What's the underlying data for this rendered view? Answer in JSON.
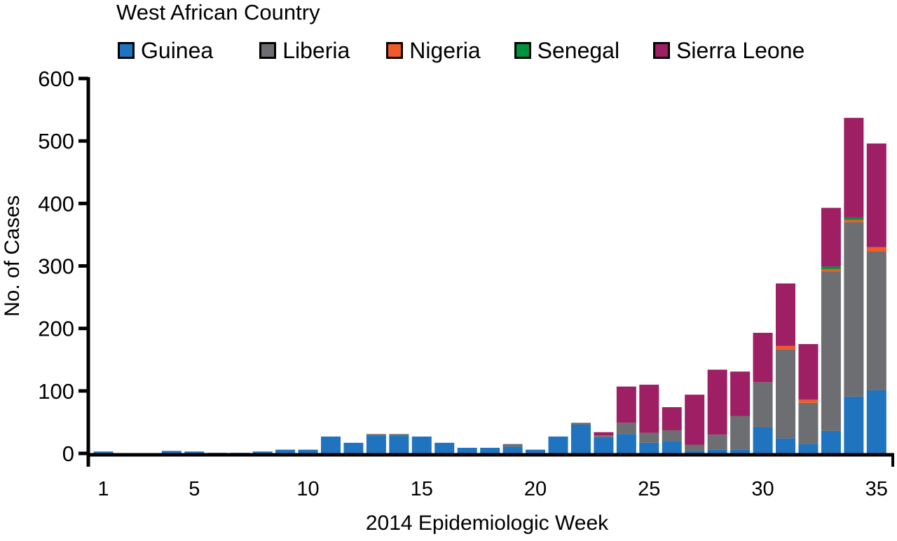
{
  "chart_data": {
    "type": "bar",
    "stacked": true,
    "title": "",
    "legend_title": "West African Country",
    "legend_position": "top",
    "xlabel": "2014 Epidemiologic Week",
    "ylabel": "No. of Cases",
    "ylim": [
      0,
      600
    ],
    "yticks": [
      0,
      100,
      200,
      300,
      400,
      500,
      600
    ],
    "xticks": [
      1,
      5,
      10,
      15,
      20,
      25,
      30,
      35
    ],
    "grid": false,
    "categories": [
      1,
      2,
      3,
      4,
      5,
      6,
      7,
      8,
      9,
      10,
      11,
      12,
      13,
      14,
      15,
      16,
      17,
      18,
      19,
      20,
      21,
      22,
      23,
      24,
      25,
      26,
      27,
      28,
      29,
      30,
      31,
      32,
      33,
      34,
      35
    ],
    "series": [
      {
        "name": "Guinea",
        "color": "#1f73bf",
        "values": [
          3,
          0,
          0,
          4,
          3,
          1,
          1,
          3,
          6,
          6,
          27,
          17,
          28,
          28,
          27,
          17,
          9,
          9,
          11,
          6,
          27,
          46,
          26,
          31,
          17,
          20,
          4,
          6,
          6,
          42,
          24,
          15,
          36,
          91,
          101
        ]
      },
      {
        "name": "Liberia",
        "color": "#6d6e71",
        "values": [
          0,
          0,
          0,
          0,
          0,
          0,
          0,
          0,
          0,
          0,
          0,
          0,
          3,
          3,
          0,
          0,
          0,
          0,
          4,
          0,
          0,
          3,
          3,
          18,
          16,
          17,
          10,
          24,
          54,
          72,
          142,
          66,
          255,
          279,
          222
        ]
      },
      {
        "name": "Nigeria",
        "color": "#f15a29",
        "values": [
          0,
          0,
          0,
          0,
          0,
          0,
          0,
          0,
          0,
          0,
          0,
          0,
          0,
          0,
          0,
          0,
          0,
          0,
          0,
          0,
          0,
          0,
          0,
          0,
          0,
          0,
          0,
          0,
          0,
          0,
          6,
          5,
          4,
          4,
          7
        ]
      },
      {
        "name": "Senegal",
        "color": "#00923f",
        "values": [
          0,
          0,
          0,
          0,
          0,
          0,
          0,
          0,
          0,
          0,
          0,
          0,
          0,
          0,
          0,
          0,
          0,
          0,
          0,
          0,
          0,
          0,
          0,
          0,
          0,
          0,
          0,
          0,
          0,
          0,
          0,
          0,
          4,
          4,
          0
        ]
      },
      {
        "name": "Sierra Leone",
        "color": "#9e1f63",
        "values": [
          0,
          0,
          0,
          0,
          0,
          0,
          0,
          0,
          0,
          0,
          0,
          0,
          0,
          0,
          0,
          0,
          0,
          0,
          0,
          0,
          0,
          0,
          5,
          58,
          77,
          37,
          80,
          104,
          71,
          79,
          100,
          89,
          94,
          159,
          166
        ]
      }
    ]
  }
}
